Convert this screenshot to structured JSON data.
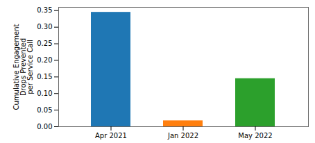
{
  "chart_data": {
    "type": "bar",
    "ylabel": "Cumulative Engagement\nDrops Prevented\nper Service Call",
    "categories": [
      "Apr 2021",
      "Jan 2022",
      "May 2022"
    ],
    "values": [
      0.345,
      0.018,
      0.145
    ],
    "colors": [
      "#1f77b4",
      "#ff7f0e",
      "#2ca02c"
    ],
    "ylim": [
      0,
      0.36
    ],
    "yticks": [
      {
        "value": 0,
        "label": "0.00"
      },
      0.05,
      {
        "value": 0.1,
        "label": "0.10"
      },
      0.15,
      {
        "value": 0.2,
        "label": "0.20"
      },
      0.25,
      {
        "value": 0.3,
        "label": "0.30"
      },
      0.35
    ],
    "grid": false
  }
}
